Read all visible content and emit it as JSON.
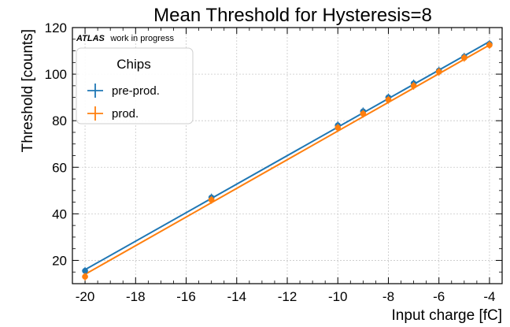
{
  "chart_data": {
    "type": "scatter",
    "title": "Mean Threshold for Hysteresis=8",
    "xlabel": "Input charge [fC]",
    "ylabel": "Threshold [counts]",
    "xlim": [
      -20.5,
      -3.5
    ],
    "ylim": [
      10,
      120
    ],
    "xticks": [
      -20,
      -18,
      -16,
      -14,
      -12,
      -10,
      -8,
      -6,
      -4
    ],
    "yticks": [
      20,
      40,
      60,
      80,
      100,
      120
    ],
    "grid": true,
    "legend": {
      "title": "Chips",
      "placement": "top-left"
    },
    "annotation": {
      "brand": "ATLAS",
      "text": "work in progress"
    },
    "series": [
      {
        "name": "pre-prod.",
        "color": "#1f77b4",
        "x": [
          -20,
          -15,
          -10,
          -9,
          -8,
          -7,
          -6,
          -5,
          -4
        ],
        "y": [
          15.5,
          47.0,
          78.0,
          84.0,
          90.0,
          96.0,
          101.5,
          107.5,
          113.0
        ],
        "fit": {
          "x": [
            -20,
            -4
          ],
          "y": [
            16.0,
            114.0
          ]
        }
      },
      {
        "name": "prod.",
        "color": "#ff7f0e",
        "x": [
          -20,
          -15,
          -10,
          -9,
          -8,
          -7,
          -6,
          -5,
          -4
        ],
        "y": [
          13.0,
          46.0,
          77.0,
          83.0,
          89.0,
          95.0,
          101.0,
          107.0,
          112.5
        ],
        "fit": {
          "x": [
            -20,
            -4
          ],
          "y": [
            14.0,
            112.5
          ]
        }
      }
    ]
  }
}
